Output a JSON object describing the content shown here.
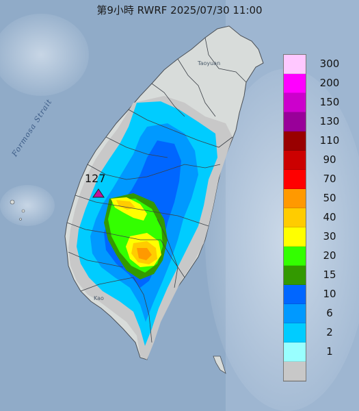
{
  "title": "第9小時  RWRF 2025/07/30 11:00",
  "strait_label": "Formosa Strait",
  "place_labels": [
    "Taoyuan",
    "Kao"
  ],
  "marker": {
    "value": "127",
    "color": "#c0149a"
  },
  "legend": {
    "colors": [
      "#ffc8ff",
      "#ff00ff",
      "#cc00cc",
      "#990099",
      "#990000",
      "#cc0000",
      "#ff0000",
      "#ff9900",
      "#ffcc00",
      "#ffff00",
      "#33ff00",
      "#339900",
      "#0066ff",
      "#0099ff",
      "#00ccff",
      "#99ffff",
      "#c8c8c8"
    ],
    "labels": [
      "300",
      "200",
      "150",
      "130",
      "110",
      "90",
      "70",
      "50",
      "40",
      "30",
      "20",
      "15",
      "10",
      "6",
      "2",
      "1"
    ]
  }
}
